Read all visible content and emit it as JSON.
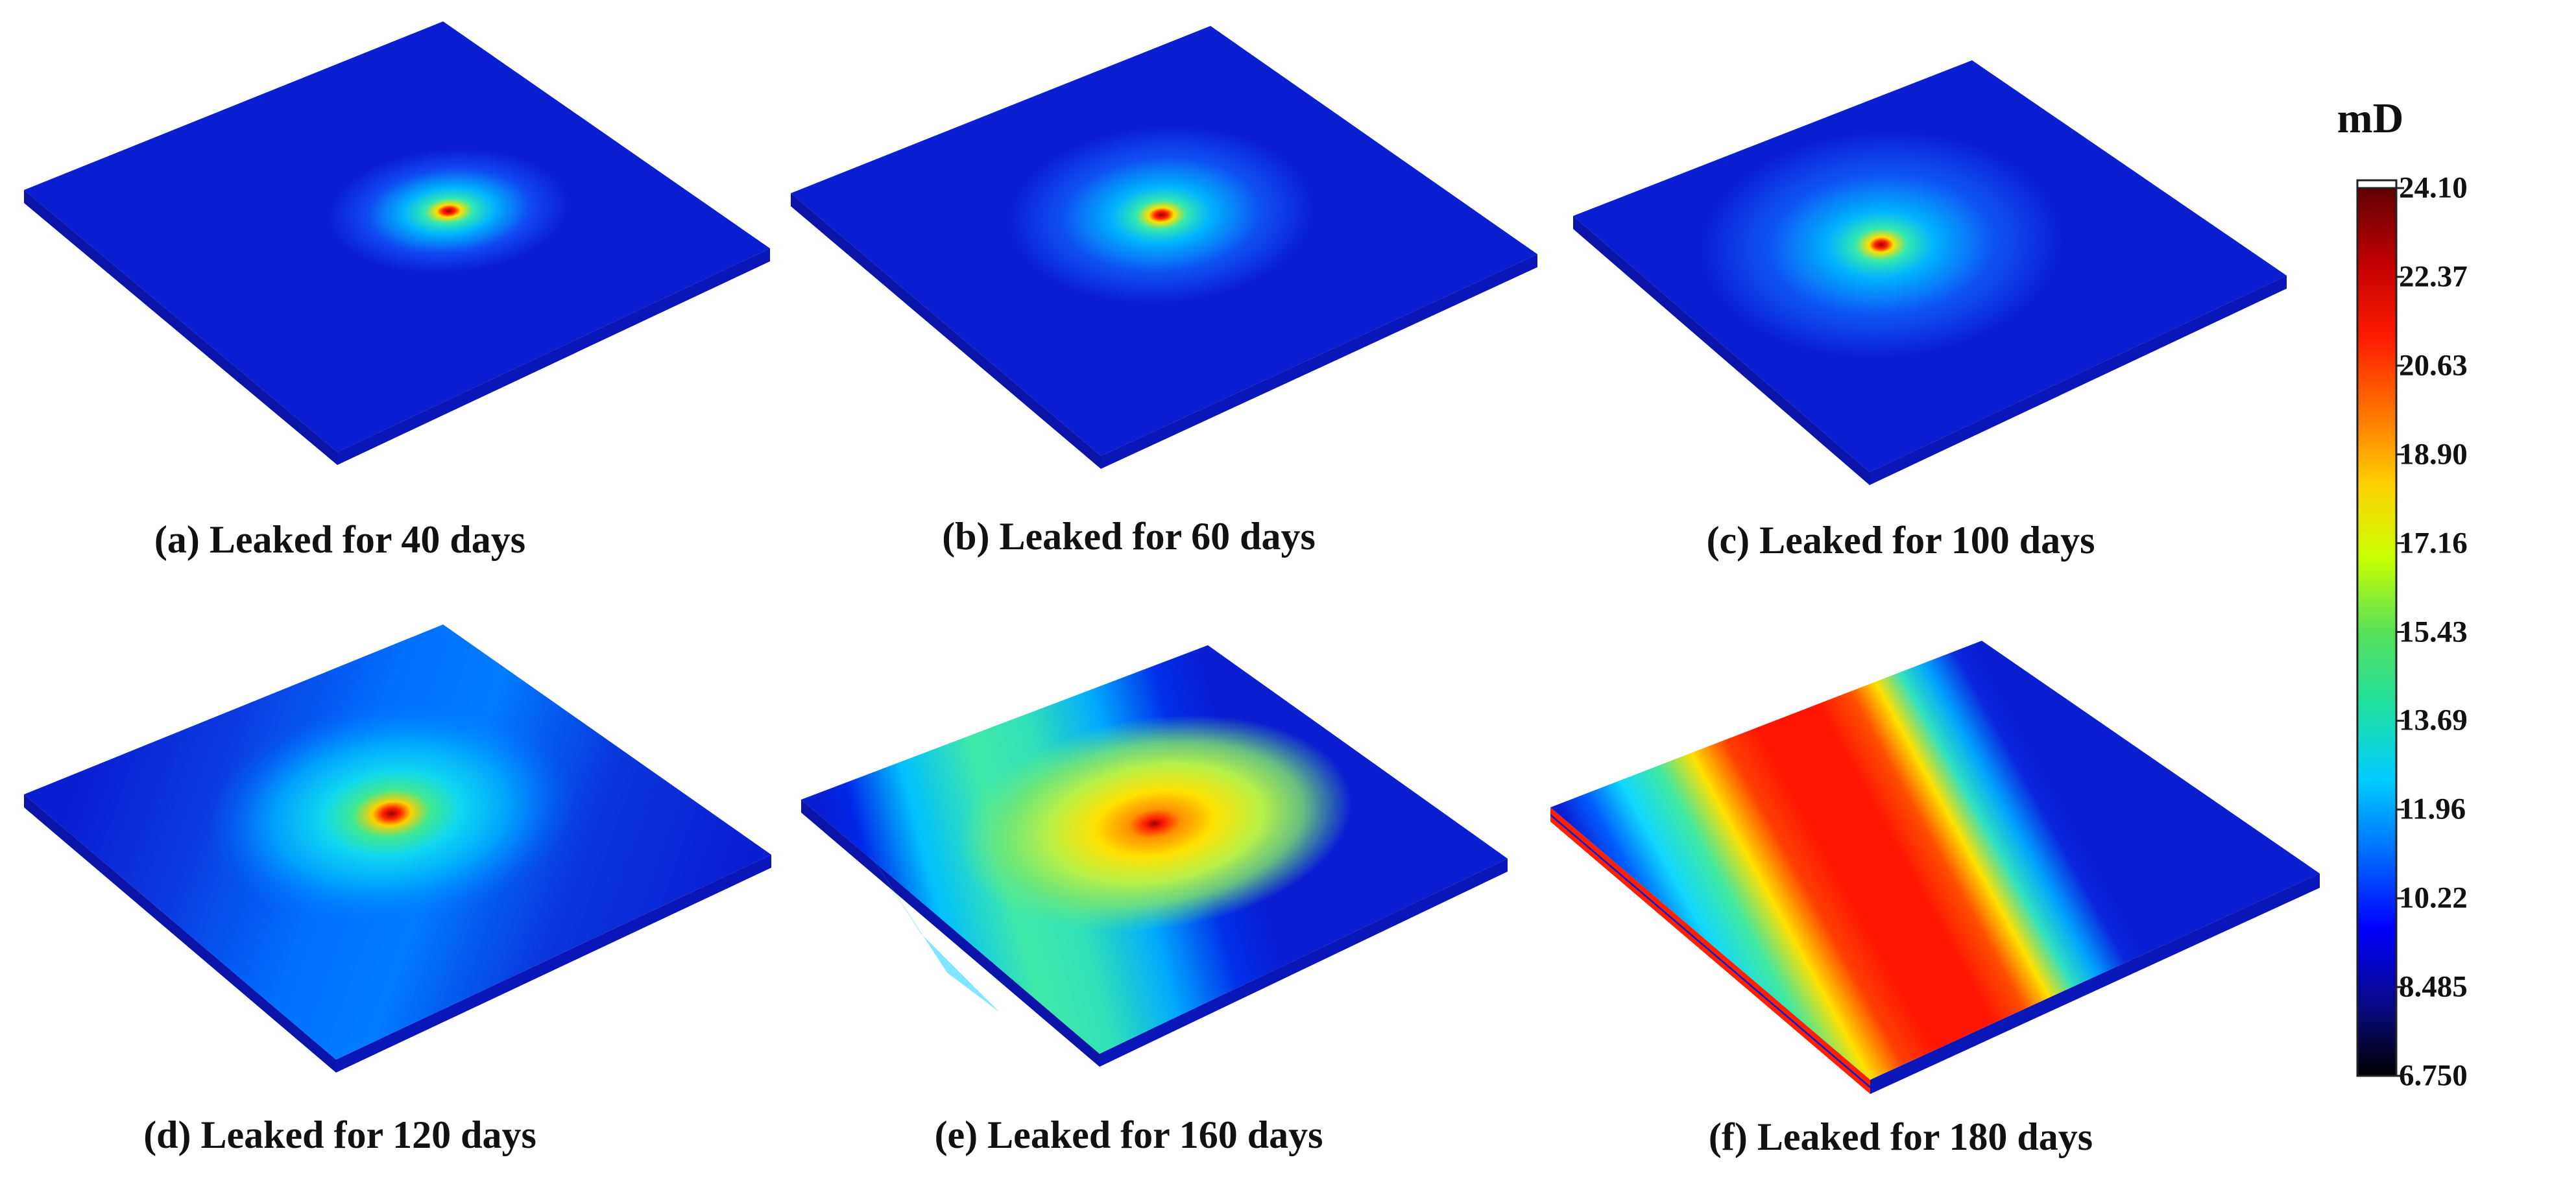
{
  "figure": {
    "panels": [
      {
        "id": "a",
        "caption": "(a) Leaked for 40 days",
        "days": 40,
        "pattern": "radial-small"
      },
      {
        "id": "b",
        "caption": "(b) Leaked for 60 days",
        "days": 60,
        "pattern": "radial-medium"
      },
      {
        "id": "c",
        "caption": "(c) Leaked for 100 days",
        "days": 100,
        "pattern": "radial-large"
      },
      {
        "id": "d",
        "caption": "(d) Leaked for 120 days",
        "days": 120,
        "pattern": "elongated-plume"
      },
      {
        "id": "e",
        "caption": "(e) Leaked for 160 days",
        "days": 160,
        "pattern": "banded-plume"
      },
      {
        "id": "f",
        "caption": "(f) Leaked for 180 days",
        "days": 180,
        "pattern": "bands-saturated"
      }
    ],
    "colorbar": {
      "unit": "mD",
      "min": 6.75,
      "max": 24.1,
      "ticks": [
        "24.10",
        "22.37",
        "20.63",
        "18.90",
        "17.16",
        "15.43",
        "13.69",
        "11.96",
        "10.22",
        "8.485",
        "6.750"
      ],
      "colormap": [
        "#000000",
        "#0a0a8c",
        "#0000ff",
        "#006cff",
        "#00ccff",
        "#1fe0a0",
        "#57e05a",
        "#c8ff00",
        "#ffd000",
        "#ff7000",
        "#ff1a00",
        "#c00000",
        "#600000"
      ]
    }
  }
}
